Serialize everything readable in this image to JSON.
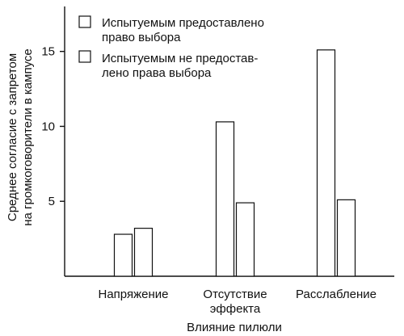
{
  "chart_data": {
    "type": "bar",
    "title": "",
    "xlabel": "Влияние пилюли",
    "ylabel": [
      "Среднее согласие с запретом",
      "на громкоговорители в кампусе"
    ],
    "categories": [
      [
        "Напряжение"
      ],
      [
        "Отсутствие",
        "эффекта"
      ],
      [
        "Расслабление"
      ]
    ],
    "series": [
      {
        "name": [
          "Испытуемым предоставлено",
          "право выбора"
        ],
        "values": [
          2.8,
          10.3,
          15.1
        ]
      },
      {
        "name": [
          "Испытуемым не предостав-",
          "лено права выбора"
        ],
        "values": [
          3.2,
          4.9,
          5.1
        ]
      }
    ],
    "yticks": [
      5,
      10,
      15
    ],
    "ylim": [
      0,
      18
    ],
    "grid": false,
    "legend_position": "top-left"
  }
}
